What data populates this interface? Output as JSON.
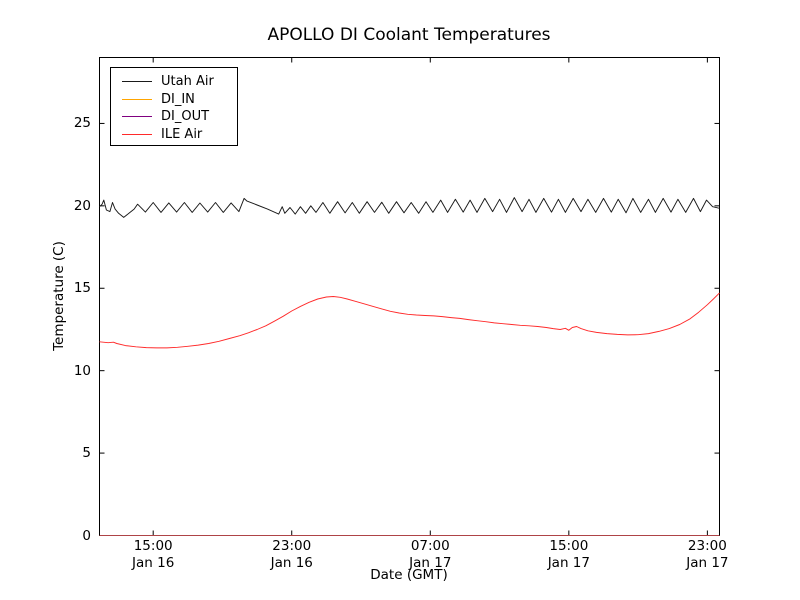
{
  "title": "APOLLO DI Coolant Temperatures",
  "chart_data": {
    "type": "line",
    "title": "APOLLO DI Coolant Temperatures",
    "xlabel": "Date (GMT)",
    "ylabel": "Temperature (C)",
    "x_unit": "hours since Jan 16 00:00 GMT",
    "xlim": [
      11.9,
      47.7
    ],
    "ylim": [
      0,
      29
    ],
    "grid": false,
    "background_color": "#ffffff",
    "axis_color": "#000000",
    "legend_position": "upper left",
    "yticks": [
      {
        "value": 0,
        "label": "0"
      },
      {
        "value": 5,
        "label": "5"
      },
      {
        "value": 10,
        "label": "10"
      },
      {
        "value": 15,
        "label": "15"
      },
      {
        "value": 20,
        "label": "20"
      },
      {
        "value": 25,
        "label": "25"
      }
    ],
    "xticks": [
      {
        "value": 15,
        "time": "15:00",
        "date": "Jan 16"
      },
      {
        "value": 23,
        "time": "23:00",
        "date": "Jan 16"
      },
      {
        "value": 31,
        "time": "07:00",
        "date": "Jan 17"
      },
      {
        "value": 39,
        "time": "15:00",
        "date": "Jan 17"
      },
      {
        "value": 47,
        "time": "23:00",
        "date": "Jan 17"
      }
    ],
    "series": [
      {
        "name": "Utah Air",
        "color": "#1a1a1a",
        "opacity": 1,
        "points": [
          [
            11.9,
            19.95
          ],
          [
            12.05,
            20.1
          ],
          [
            12.15,
            20.35
          ],
          [
            12.3,
            19.75
          ],
          [
            12.5,
            19.65
          ],
          [
            12.65,
            20.2
          ],
          [
            12.8,
            19.8
          ],
          [
            13.0,
            19.55
          ],
          [
            13.3,
            19.3
          ],
          [
            13.6,
            19.55
          ],
          [
            13.9,
            19.8
          ],
          [
            14.1,
            20.1
          ],
          [
            14.55,
            19.62
          ],
          [
            15.0,
            20.2
          ],
          [
            15.45,
            19.6
          ],
          [
            15.9,
            20.18
          ],
          [
            16.35,
            19.62
          ],
          [
            16.8,
            20.2
          ],
          [
            17.25,
            19.6
          ],
          [
            17.7,
            20.17
          ],
          [
            18.15,
            19.62
          ],
          [
            18.6,
            20.2
          ],
          [
            19.05,
            19.6
          ],
          [
            19.5,
            20.18
          ],
          [
            19.95,
            19.65
          ],
          [
            20.25,
            20.45
          ],
          [
            20.4,
            20.3
          ],
          [
            21.0,
            20.05
          ],
          [
            21.6,
            19.8
          ],
          [
            22.25,
            19.5
          ],
          [
            22.45,
            19.95
          ],
          [
            22.6,
            19.55
          ],
          [
            22.9,
            19.9
          ],
          [
            23.2,
            19.5
          ],
          [
            23.5,
            19.95
          ],
          [
            23.8,
            19.55
          ],
          [
            24.1,
            20.0
          ],
          [
            24.4,
            19.6
          ],
          [
            24.8,
            20.2
          ],
          [
            25.2,
            19.55
          ],
          [
            25.65,
            20.25
          ],
          [
            26.08,
            19.57
          ],
          [
            26.5,
            20.2
          ],
          [
            26.9,
            19.55
          ],
          [
            27.35,
            20.25
          ],
          [
            27.78,
            19.6
          ],
          [
            28.2,
            20.22
          ],
          [
            28.6,
            19.55
          ],
          [
            29.05,
            20.25
          ],
          [
            29.48,
            19.58
          ],
          [
            29.9,
            20.2
          ],
          [
            30.33,
            19.55
          ],
          [
            30.75,
            20.25
          ],
          [
            31.15,
            19.6
          ],
          [
            31.6,
            20.35
          ],
          [
            32.0,
            19.6
          ],
          [
            32.45,
            20.4
          ],
          [
            32.9,
            19.62
          ],
          [
            33.3,
            20.35
          ],
          [
            33.7,
            19.6
          ],
          [
            34.15,
            20.45
          ],
          [
            34.6,
            19.65
          ],
          [
            35.0,
            20.4
          ],
          [
            35.4,
            19.6
          ],
          [
            35.85,
            20.5
          ],
          [
            36.3,
            19.65
          ],
          [
            36.7,
            20.4
          ],
          [
            37.1,
            19.6
          ],
          [
            37.55,
            20.45
          ],
          [
            38.0,
            19.62
          ],
          [
            38.4,
            20.4
          ],
          [
            38.8,
            19.6
          ],
          [
            39.25,
            20.45
          ],
          [
            39.7,
            19.65
          ],
          [
            40.1,
            20.4
          ],
          [
            40.55,
            19.6
          ],
          [
            41.0,
            20.45
          ],
          [
            41.45,
            19.62
          ],
          [
            41.85,
            20.4
          ],
          [
            42.3,
            19.58
          ],
          [
            42.7,
            20.45
          ],
          [
            43.15,
            19.6
          ],
          [
            43.6,
            20.4
          ],
          [
            44.0,
            19.6
          ],
          [
            44.45,
            20.45
          ],
          [
            44.9,
            19.62
          ],
          [
            45.3,
            20.4
          ],
          [
            45.75,
            19.6
          ],
          [
            46.2,
            20.45
          ],
          [
            46.6,
            19.65
          ],
          [
            46.95,
            20.35
          ],
          [
            47.3,
            19.95
          ],
          [
            47.7,
            19.85
          ]
        ]
      },
      {
        "name": "DI_IN",
        "color": "#ffa500",
        "opacity": 0.9,
        "points": [
          [
            11.9,
            0
          ],
          [
            47.7,
            0
          ]
        ]
      },
      {
        "name": "DI_OUT",
        "color": "#800080",
        "opacity": 0.55,
        "points": [
          [
            11.9,
            0
          ],
          [
            47.7,
            0
          ]
        ]
      },
      {
        "name": "ILE Air",
        "color": "#ff2a2a",
        "opacity": 1,
        "points": [
          [
            11.9,
            11.75
          ],
          [
            12.4,
            11.7
          ],
          [
            12.7,
            11.73
          ],
          [
            12.9,
            11.65
          ],
          [
            13.4,
            11.52
          ],
          [
            14.0,
            11.45
          ],
          [
            14.6,
            11.4
          ],
          [
            15.2,
            11.38
          ],
          [
            15.8,
            11.38
          ],
          [
            16.4,
            11.42
          ],
          [
            17.0,
            11.48
          ],
          [
            17.6,
            11.55
          ],
          [
            18.2,
            11.65
          ],
          [
            18.8,
            11.78
          ],
          [
            19.4,
            11.95
          ],
          [
            20.0,
            12.12
          ],
          [
            20.5,
            12.3
          ],
          [
            21.0,
            12.5
          ],
          [
            21.5,
            12.72
          ],
          [
            22.0,
            13.0
          ],
          [
            22.5,
            13.3
          ],
          [
            23.0,
            13.62
          ],
          [
            23.5,
            13.9
          ],
          [
            24.0,
            14.15
          ],
          [
            24.5,
            14.35
          ],
          [
            25.0,
            14.47
          ],
          [
            25.4,
            14.5
          ],
          [
            25.8,
            14.45
          ],
          [
            26.2,
            14.35
          ],
          [
            26.7,
            14.2
          ],
          [
            27.2,
            14.05
          ],
          [
            27.7,
            13.9
          ],
          [
            28.2,
            13.75
          ],
          [
            28.7,
            13.6
          ],
          [
            29.2,
            13.5
          ],
          [
            29.7,
            13.42
          ],
          [
            30.2,
            13.38
          ],
          [
            30.7,
            13.35
          ],
          [
            31.2,
            13.32
          ],
          [
            31.7,
            13.28
          ],
          [
            32.2,
            13.22
          ],
          [
            32.7,
            13.17
          ],
          [
            33.2,
            13.1
          ],
          [
            33.7,
            13.03
          ],
          [
            34.2,
            12.97
          ],
          [
            34.7,
            12.9
          ],
          [
            35.2,
            12.85
          ],
          [
            35.7,
            12.8
          ],
          [
            36.2,
            12.75
          ],
          [
            36.7,
            12.72
          ],
          [
            37.2,
            12.68
          ],
          [
            37.7,
            12.62
          ],
          [
            38.1,
            12.55
          ],
          [
            38.5,
            12.5
          ],
          [
            38.8,
            12.57
          ],
          [
            39.0,
            12.45
          ],
          [
            39.2,
            12.62
          ],
          [
            39.45,
            12.68
          ],
          [
            39.7,
            12.55
          ],
          [
            40.1,
            12.42
          ],
          [
            40.6,
            12.32
          ],
          [
            41.2,
            12.25
          ],
          [
            41.8,
            12.2
          ],
          [
            42.4,
            12.17
          ],
          [
            43.0,
            12.18
          ],
          [
            43.6,
            12.25
          ],
          [
            44.2,
            12.38
          ],
          [
            44.8,
            12.55
          ],
          [
            45.4,
            12.8
          ],
          [
            46.0,
            13.15
          ],
          [
            46.5,
            13.55
          ],
          [
            47.0,
            14.0
          ],
          [
            47.35,
            14.35
          ],
          [
            47.7,
            14.72
          ]
        ]
      }
    ]
  }
}
